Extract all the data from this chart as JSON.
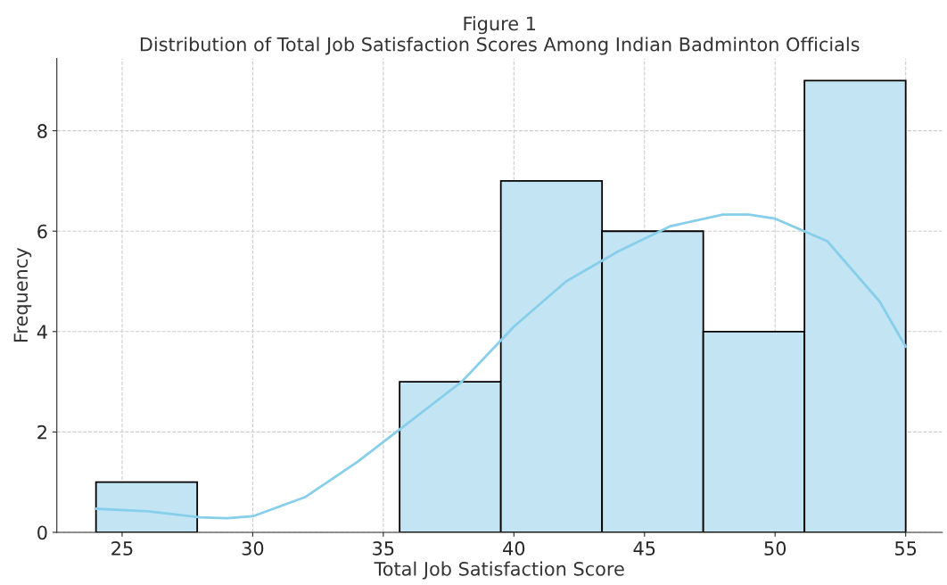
{
  "chart_data": {
    "type": "histogram",
    "title": "Figure 1\nDistribution of Total Job Satisfaction Scores Among Indian Badminton Officials",
    "xlabel": "Total Job Satisfaction Score",
    "ylabel": "Frequency",
    "bins": [
      24,
      27.875,
      31.75,
      35.625,
      39.5,
      43.375,
      47.25,
      51.125,
      55
    ],
    "values": [
      1,
      0,
      0,
      3,
      7,
      6,
      4,
      9
    ],
    "color": "#c3e5f3",
    "series": [
      {
        "type": "line",
        "color": "#87ceeb",
        "x": [
          24,
          26,
          28,
          29,
          30,
          32,
          34,
          36,
          38,
          40,
          42,
          44,
          46,
          48,
          49,
          50,
          52,
          54,
          55
        ],
        "values": [
          0.47,
          0.42,
          0.3,
          0.28,
          0.32,
          0.7,
          1.4,
          2.2,
          3.0,
          4.1,
          5.0,
          5.6,
          6.1,
          6.33,
          6.33,
          6.25,
          5.8,
          4.6,
          3.7
        ]
      }
    ],
    "xlim": [
      22.5,
      56.4
    ],
    "ylim": [
      0,
      9.44
    ],
    "xticks": [
      25,
      30,
      35,
      40,
      45,
      50,
      55
    ],
    "yticks": [
      0,
      2,
      4,
      6,
      8
    ],
    "grid": true
  }
}
